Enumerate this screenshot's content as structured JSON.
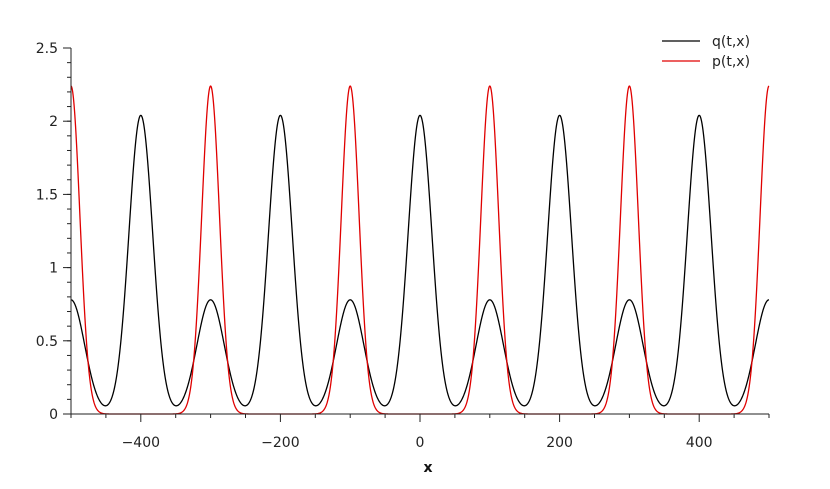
{
  "chart_data": {
    "type": "line",
    "title": "",
    "xlabel": "x",
    "ylabel": "",
    "xlim": [
      -500,
      500
    ],
    "ylim": [
      0,
      2.5
    ],
    "x_ticks": [
      {
        "value": -400,
        "label": "−400"
      },
      {
        "value": -200,
        "label": "−200"
      },
      {
        "value": 0,
        "label": "0"
      },
      {
        "value": 200,
        "label": "200"
      },
      {
        "value": 400,
        "label": "400"
      }
    ],
    "x_minor_ticks": [
      -500,
      -450,
      -350,
      -300,
      -250,
      -150,
      -100,
      -50,
      50,
      100,
      150,
      250,
      300,
      350,
      450,
      500
    ],
    "y_ticks": [
      {
        "value": 0,
        "label": "0"
      },
      {
        "value": 0.5,
        "label": "0.5"
      },
      {
        "value": 1,
        "label": "1"
      },
      {
        "value": 1.5,
        "label": "1.5"
      },
      {
        "value": 2,
        "label": "2"
      },
      {
        "value": 2.5,
        "label": "2.5"
      }
    ],
    "y_minor_step": 0.1,
    "grid": false,
    "legend": {
      "position": "top-right"
    },
    "series": [
      {
        "name": "q(t,x)",
        "color": "#000000",
        "shape": "periodic peaks",
        "period": 200,
        "components": [
          {
            "offset": 0,
            "amplitude": 2.04,
            "halfwidth": 20
          },
          {
            "offset": 100,
            "amplitude": 0.78,
            "halfwidth": 23
          }
        ]
      },
      {
        "name": "p(t,x)",
        "color": "#e00000",
        "shape": "periodic peaks",
        "period": 200,
        "components": [
          {
            "offset": 100,
            "amplitude": 2.24,
            "halfwidth": 15
          }
        ]
      }
    ]
  }
}
